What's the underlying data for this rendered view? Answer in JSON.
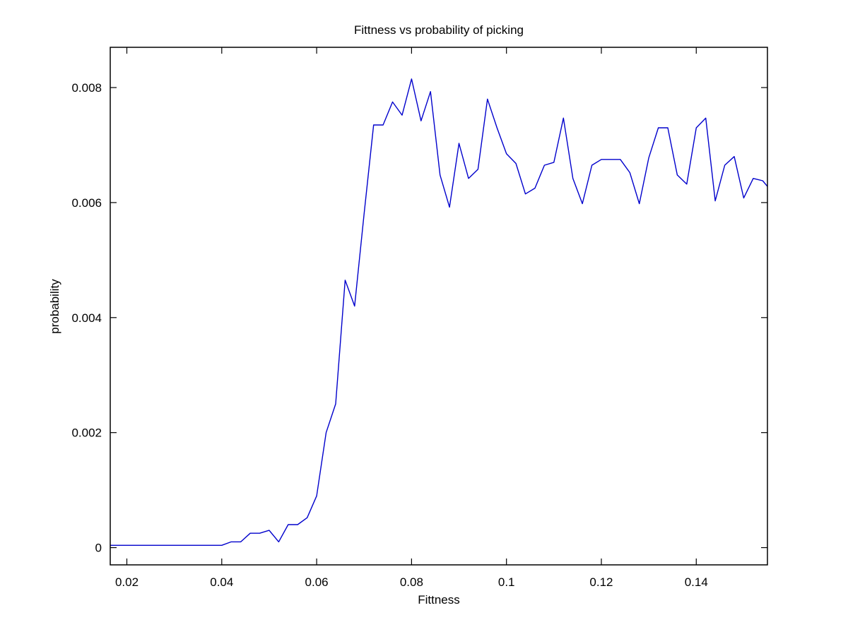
{
  "chart_data": {
    "type": "line",
    "title": "Fittness vs probability of picking",
    "xlabel": "Fittness",
    "ylabel": "probability",
    "xlim": [
      0.0165,
      0.155
    ],
    "ylim": [
      -0.0003,
      0.0087
    ],
    "xticks": [
      {
        "value": 0.02,
        "label": "0.02"
      },
      {
        "value": 0.04,
        "label": "0.04"
      },
      {
        "value": 0.06,
        "label": "0.06"
      },
      {
        "value": 0.08,
        "label": "0.08"
      },
      {
        "value": 0.1,
        "label": "0.1"
      },
      {
        "value": 0.12,
        "label": "0.12"
      },
      {
        "value": 0.14,
        "label": "0.14"
      }
    ],
    "yticks": [
      {
        "value": 0,
        "label": "0"
      },
      {
        "value": 0.002,
        "label": "0.002"
      },
      {
        "value": 0.004,
        "label": "0.004"
      },
      {
        "value": 0.006,
        "label": "0.006"
      },
      {
        "value": 0.008,
        "label": "0.008"
      }
    ],
    "grid": false,
    "series": [
      {
        "color": "#0000cc",
        "x": [
          0.0165,
          0.018,
          0.02,
          0.022,
          0.024,
          0.026,
          0.028,
          0.03,
          0.032,
          0.034,
          0.036,
          0.038,
          0.04,
          0.042,
          0.044,
          0.046,
          0.048,
          0.05,
          0.052,
          0.054,
          0.056,
          0.058,
          0.06,
          0.062,
          0.064,
          0.066,
          0.068,
          0.07,
          0.072,
          0.074,
          0.076,
          0.078,
          0.08,
          0.082,
          0.084,
          0.086,
          0.088,
          0.09,
          0.092,
          0.094,
          0.096,
          0.098,
          0.1,
          0.102,
          0.104,
          0.106,
          0.108,
          0.11,
          0.112,
          0.114,
          0.116,
          0.118,
          0.12,
          0.122,
          0.124,
          0.126,
          0.128,
          0.13,
          0.132,
          0.134,
          0.136,
          0.138,
          0.14,
          0.142,
          0.144,
          0.146,
          0.148,
          0.15,
          0.152,
          0.154,
          0.155
        ],
        "y": [
          4e-05,
          4e-05,
          4e-05,
          4e-05,
          4e-05,
          4e-05,
          4e-05,
          4e-05,
          4e-05,
          4e-05,
          4e-05,
          4e-05,
          4e-05,
          0.0001,
          0.0001,
          0.00025,
          0.00025,
          0.0003,
          0.0001,
          0.0004,
          0.0004,
          0.00052,
          0.0009,
          0.002,
          0.0025,
          0.00465,
          0.0042,
          0.0058,
          0.00735,
          0.00735,
          0.00775,
          0.00752,
          0.00815,
          0.00742,
          0.00793,
          0.00648,
          0.00592,
          0.00703,
          0.00642,
          0.00658,
          0.0078,
          0.0073,
          0.00685,
          0.00668,
          0.00615,
          0.00625,
          0.00665,
          0.0067,
          0.00747,
          0.00642,
          0.00598,
          0.00665,
          0.00675,
          0.00675,
          0.00675,
          0.00652,
          0.00598,
          0.00678,
          0.0073,
          0.0073,
          0.00648,
          0.00632,
          0.0073,
          0.00747,
          0.00603,
          0.00665,
          0.0068,
          0.00608,
          0.00642,
          0.00638,
          0.00628
        ]
      }
    ]
  }
}
